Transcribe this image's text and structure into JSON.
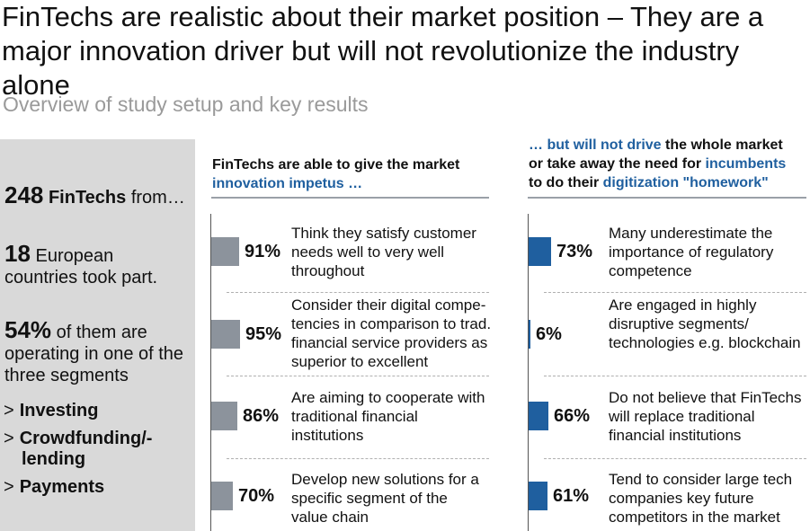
{
  "title": "FinTechs are realistic about their market position – They are a major innovation driver but will not revolutionize the industry alone",
  "subtitle": "Overview of study setup and key results",
  "left": {
    "n_fintechs": "248",
    "fintechs_word": "FinTechs",
    "from": " from…",
    "n_countries": "18",
    "countries_line1": " European",
    "countries_line2": "countries took part.",
    "pct_segments": "54%",
    "segments_line1": " of them are",
    "segments_line2": "operating in one of the",
    "segments_line3": "three segments",
    "marker": ">",
    "segments": [
      "Investing",
      "Crowdfunding/-",
      "lending",
      "Payments"
    ]
  },
  "colors": {
    "gray_bar": "#8c939c",
    "blue_bar": "#1f5f9f",
    "blue_text": "#1f5f9f"
  },
  "chart_data": [
    {
      "type": "bar",
      "heading": {
        "part1": "FinTechs are able to give the market",
        "part2": "innovation impetus …"
      },
      "categories": [
        "Think they satisfy customer needs well to very well throughout",
        "Consider their digital compe-tencies in comparison to trad. financial service providers as superior to excellent",
        "Are aiming to cooperate with traditional financial institutions",
        "Develop new solutions for a specific segment of the value chain"
      ],
      "desc_lines": [
        [
          "Think they satisfy customer",
          "needs well to very well",
          "throughout"
        ],
        [
          "Consider their digital compe-",
          "tencies in comparison to trad.",
          "financial service providers as",
          "superior to excellent"
        ],
        [
          "Are aiming to cooperate with",
          "traditional financial",
          "institutions"
        ],
        [
          "Develop new solutions for a",
          "specific segment of the",
          "value chain"
        ]
      ],
      "values": [
        91,
        95,
        86,
        70
      ],
      "labels": [
        "91%",
        "95%",
        "86%",
        "70%"
      ],
      "color": "#8c939c"
    },
    {
      "type": "bar",
      "heading": {
        "part1": "… but will not drive",
        "part2": " the whole market",
        "part3": "or take away the need for ",
        "part4": "incumbents",
        "part5": "to do their ",
        "part6": "digitization \"homework\""
      },
      "categories": [
        "Many underestimate the importance of regulatory competence",
        "Are engaged in highly disruptive segments/ technologies e.g. blockchain",
        "Do not believe that FinTechs will replace traditional financial institutions",
        "Tend to consider large tech companies key future competitors in the market"
      ],
      "desc_lines": [
        [
          "Many underestimate the",
          "importance of regulatory",
          "competence"
        ],
        [
          "Are engaged in highly",
          "disruptive segments/",
          "technologies e.g. blockchain"
        ],
        [
          "Do not believe that FinTechs",
          "will replace traditional",
          "financial institutions"
        ],
        [
          "Tend to consider large tech",
          "companies key future",
          "competitors in the market"
        ]
      ],
      "values": [
        73,
        6,
        66,
        61
      ],
      "labels": [
        "73%",
        "6%",
        "66%",
        "61%"
      ],
      "color": "#1f5f9f"
    }
  ]
}
